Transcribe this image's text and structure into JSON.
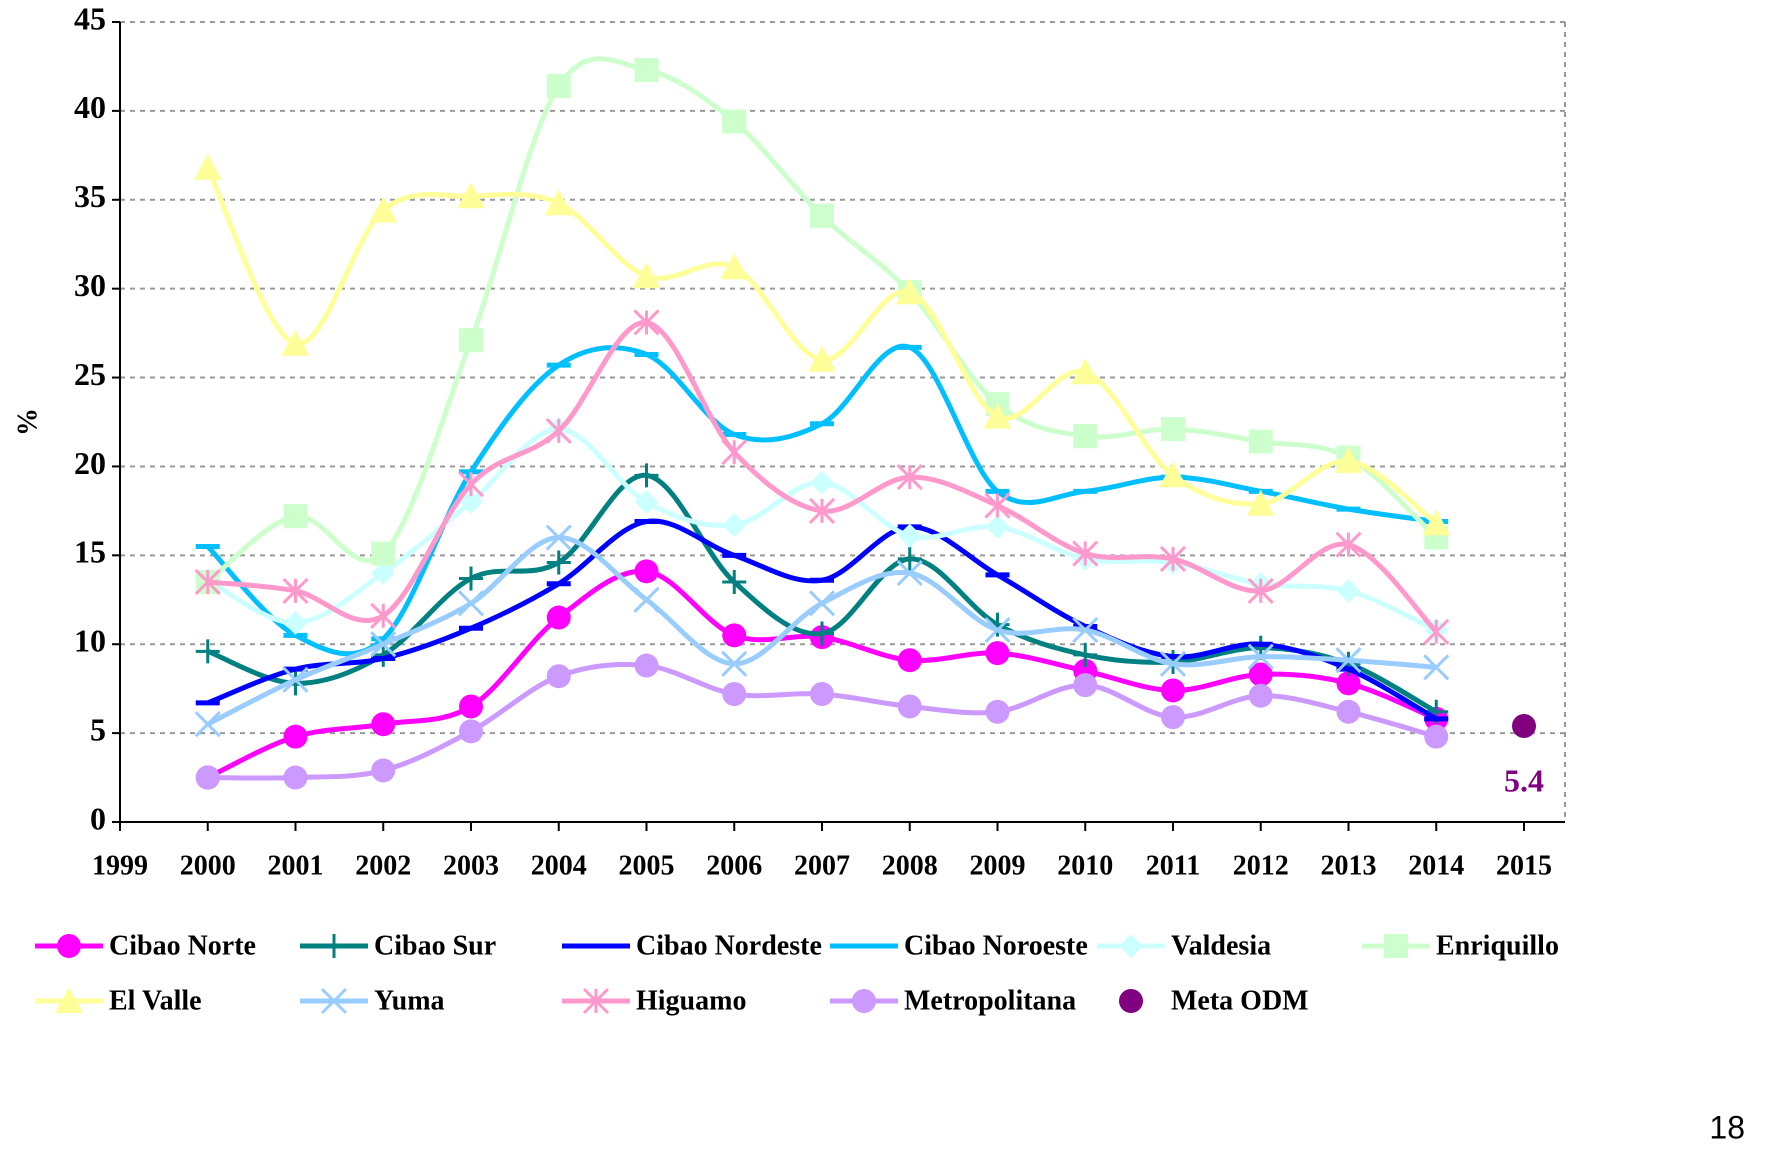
{
  "chart_data": {
    "type": "line",
    "ylabel": "%",
    "x": [
      2000,
      2001,
      2002,
      2003,
      2004,
      2005,
      2006,
      2007,
      2008,
      2009,
      2010,
      2011,
      2012,
      2013,
      2014,
      2015
    ],
    "xlim": [
      1999,
      2015
    ],
    "xticks": [
      1999,
      2000,
      2001,
      2002,
      2003,
      2004,
      2005,
      2006,
      2007,
      2008,
      2009,
      2010,
      2011,
      2012,
      2013,
      2014,
      2015
    ],
    "ylim": [
      0,
      45
    ],
    "yticks": [
      0,
      5,
      10,
      15,
      20,
      25,
      30,
      35,
      40,
      45
    ],
    "grid": true,
    "smooth": true,
    "series": [
      {
        "name": "Cibao Norte",
        "color": "#FF00FF",
        "marker": "circle",
        "line": true,
        "values": [
          2.5,
          4.8,
          5.5,
          6.5,
          11.5,
          14.1,
          10.5,
          10.4,
          9.1,
          9.5,
          8.5,
          7.4,
          8.3,
          7.8,
          5.8,
          null
        ]
      },
      {
        "name": "Cibao Sur",
        "color": "#008080",
        "marker": "plus",
        "line": true,
        "values": [
          9.6,
          7.8,
          9.4,
          13.7,
          14.6,
          19.5,
          13.5,
          10.6,
          14.8,
          11.1,
          9.4,
          9.0,
          9.8,
          8.9,
          6.2,
          null
        ]
      },
      {
        "name": "Cibao Nordeste",
        "color": "#0000FF",
        "marker": "dash",
        "line": true,
        "values": [
          6.7,
          8.6,
          9.2,
          10.9,
          13.4,
          16.9,
          15.0,
          13.6,
          16.6,
          13.9,
          11.0,
          9.3,
          10.0,
          8.6,
          5.8,
          null
        ]
      },
      {
        "name": "Cibao Noroeste",
        "color": "#00BFFF",
        "marker": "dash",
        "line": true,
        "values": [
          15.5,
          10.5,
          10.3,
          19.7,
          25.7,
          26.3,
          21.8,
          22.4,
          26.7,
          18.6,
          18.6,
          19.4,
          18.6,
          17.6,
          16.9,
          null
        ]
      },
      {
        "name": "Valdesia",
        "color": "#CCFFFF",
        "marker": "diamond",
        "line": true,
        "values": [
          13.6,
          11.2,
          14.0,
          18.0,
          22.1,
          18.0,
          16.7,
          19.1,
          16.1,
          16.6,
          14.8,
          14.6,
          13.4,
          13.0,
          10.8,
          null
        ]
      },
      {
        "name": "Enriquillo",
        "color": "#CCFFCC",
        "marker": "square",
        "line": true,
        "values": [
          13.5,
          17.2,
          15.1,
          27.1,
          41.4,
          42.3,
          39.4,
          34.1,
          29.8,
          23.5,
          21.7,
          22.1,
          21.4,
          20.5,
          16.0,
          null
        ]
      },
      {
        "name": "El Valle",
        "color": "#FFFF99",
        "marker": "triangle",
        "line": true,
        "values": [
          36.8,
          26.9,
          34.4,
          35.2,
          34.8,
          30.7,
          31.2,
          26.0,
          29.8,
          22.8,
          25.3,
          19.5,
          17.9,
          20.3,
          16.8,
          null
        ]
      },
      {
        "name": "Yuma",
        "color": "#99CCFF",
        "marker": "x",
        "line": true,
        "values": [
          5.5,
          8.0,
          10.0,
          12.3,
          16.0,
          12.5,
          8.9,
          12.3,
          14.0,
          10.8,
          10.8,
          8.9,
          9.3,
          9.1,
          8.7,
          null
        ]
      },
      {
        "name": "Higuamo",
        "color": "#FF99CC",
        "marker": "star",
        "line": true,
        "values": [
          13.5,
          13.0,
          11.6,
          19.0,
          22.0,
          28.1,
          20.8,
          17.5,
          19.4,
          17.8,
          15.1,
          14.8,
          13.0,
          15.6,
          10.7,
          null
        ]
      },
      {
        "name": "Metropolitana",
        "color": "#CC99FF",
        "marker": "circle",
        "line": true,
        "values": [
          2.5,
          2.5,
          2.9,
          5.1,
          8.2,
          8.8,
          7.2,
          7.2,
          6.5,
          6.2,
          7.7,
          5.9,
          7.1,
          6.2,
          4.8,
          null
        ]
      },
      {
        "name": "Meta ODM",
        "color": "#800080",
        "marker": "circle",
        "line": false,
        "data_labels": true,
        "values": [
          null,
          null,
          null,
          null,
          null,
          null,
          null,
          null,
          null,
          null,
          null,
          null,
          null,
          null,
          null,
          5.4
        ]
      }
    ]
  },
  "page_number": "18"
}
